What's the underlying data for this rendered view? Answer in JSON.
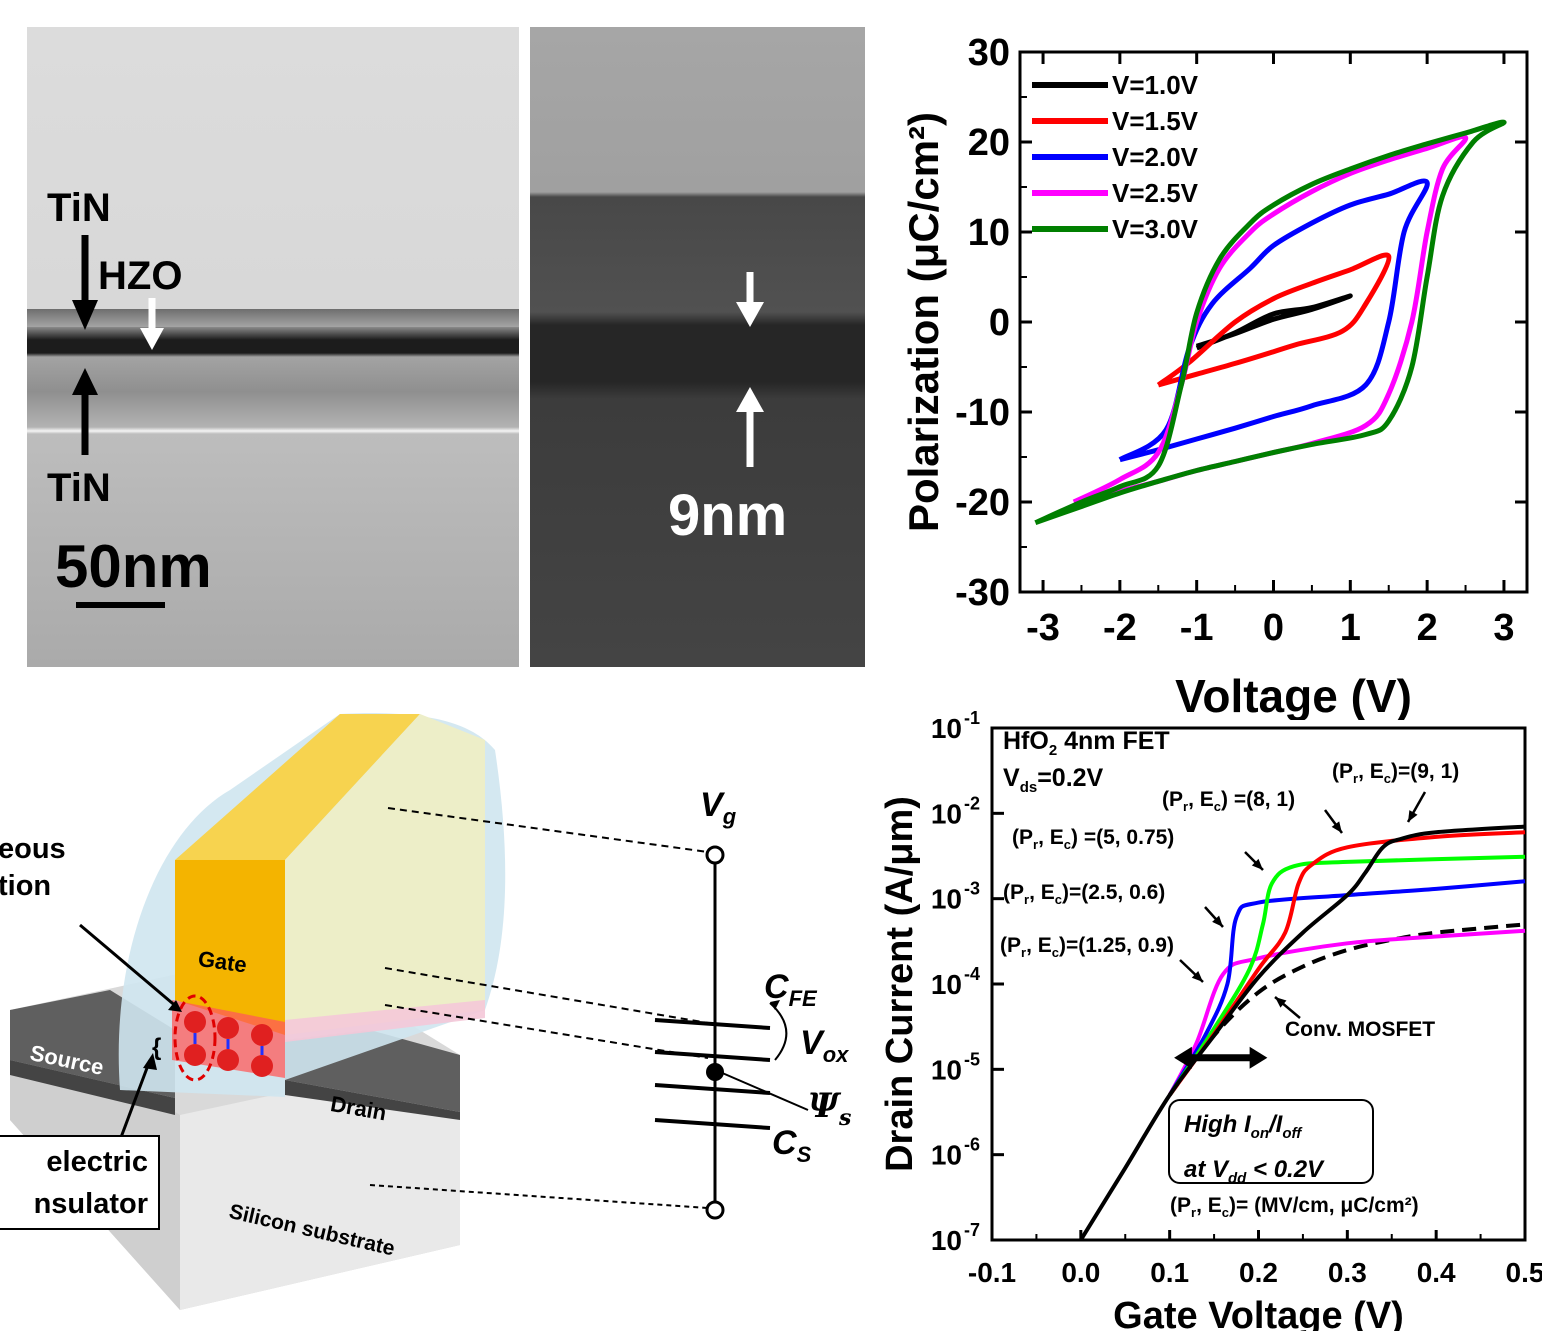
{
  "tem": {
    "left_labels": {
      "tin_top": "TiN",
      "hzo": "HZO",
      "tin_bottom": "TiN",
      "scale_bar": "50nm"
    },
    "right_labels": {
      "thickness": "9nm"
    }
  },
  "device": {
    "labels": {
      "gate": "Gate",
      "source": "Source",
      "drain": "Drain",
      "substrate": "Silicon substrate",
      "spontaneous_line1": "eous",
      "spontaneous_line2": "tion",
      "dielectric_line1": "electric",
      "dielectric_line2": "nsulator"
    },
    "circuit": {
      "vg": "V",
      "vg_sub": "g",
      "cfe": "C",
      "cfe_sub": "FE",
      "vox": "V",
      "vox_sub": "ox",
      "psi": "Ψ",
      "psi_sub": "s",
      "cs": "C",
      "cs_sub": "S"
    }
  },
  "annotations": {
    "hfo2_line1_a": "HfO",
    "hfo2_line1_sub": "2",
    "hfo2_line1_b": " 4nm FET",
    "vds_a": "V",
    "vds_sub": "ds",
    "vds_b": "=0.2V",
    "pr_ec_9_1": "=(9, 1)",
    "pr_ec_8_1": " =(8, 1)",
    "pr_ec_5_075": " =(5, 0.75)",
    "pr_ec_25_06": "=(2.5, 0.6)",
    "pr_ec_125_09": "=(1.25, 0.9)",
    "conv": "Conv. MOSFET",
    "units": "= (MV/cm, μC/cm²)",
    "box_line1_a": "High I",
    "box_line1_on": "on",
    "box_line1_b": "/I",
    "box_line1_off": "off",
    "box_line2_a": "at V",
    "box_line2_dd": "dd",
    "box_line2_b": " < 0.2V",
    "pr": "(P",
    "r_sub": "r",
    "ec": ", E",
    "c_sub": "c",
    "close": ")"
  },
  "chart_data": [
    {
      "type": "line",
      "title": "",
      "xlabel": "Voltage (V)",
      "ylabel": "Polarization (μC/cm²)",
      "xlim": [
        -3.3,
        3.3
      ],
      "ylim": [
        -30,
        30
      ],
      "xticks": [
        "-3",
        "-2",
        "-1",
        "0",
        "1",
        "2",
        "3"
      ],
      "yticks": [
        "30",
        "20",
        "10",
        "0",
        "-10",
        "-20",
        "-30"
      ],
      "legend_position": "top-left",
      "series": [
        {
          "name": "V=1.0V",
          "color": "#000000",
          "upper": [
            [
              -1,
              -2.7
            ],
            [
              -0.5,
              -1.3
            ],
            [
              0,
              0.3
            ],
            [
              0.5,
              1.4
            ],
            [
              1,
              2.9
            ]
          ],
          "lower": [
            [
              1,
              2.6
            ],
            [
              0.5,
              1.6
            ],
            [
              0,
              0.9
            ],
            [
              -0.5,
              -1.2
            ],
            [
              -1,
              -2.9
            ]
          ]
        },
        {
          "name": "V=1.5V",
          "color": "#ff0000",
          "upper": [
            [
              -1.5,
              -7
            ],
            [
              -1.1,
              -4.5
            ],
            [
              -0.5,
              0
            ],
            [
              0,
              2.6
            ],
            [
              0.5,
              4.3
            ],
            [
              1,
              5.8
            ],
            [
              1.5,
              7.3
            ]
          ],
          "lower": [
            [
              1.5,
              7.3
            ],
            [
              1.2,
              2
            ],
            [
              0.9,
              -1
            ],
            [
              0.3,
              -2.5
            ],
            [
              0,
              -3.3
            ],
            [
              -0.5,
              -4.6
            ],
            [
              -1,
              -5.8
            ],
            [
              -1.5,
              -7
            ]
          ]
        },
        {
          "name": "V=2.0V",
          "color": "#0000ff",
          "upper": [
            [
              -2,
              -15.3
            ],
            [
              -1.4,
              -12
            ],
            [
              -1.1,
              -3
            ],
            [
              -0.8,
              2
            ],
            [
              -0.3,
              6
            ],
            [
              0,
              8.5
            ],
            [
              0.5,
              11
            ],
            [
              1,
              13
            ],
            [
              1.5,
              14.2
            ],
            [
              2,
              15.5
            ]
          ],
          "lower": [
            [
              2,
              15.5
            ],
            [
              1.7,
              10
            ],
            [
              1.5,
              0
            ],
            [
              1.2,
              -7
            ],
            [
              0.5,
              -9.3
            ],
            [
              0,
              -10.5
            ],
            [
              -0.5,
              -11.8
            ],
            [
              -1,
              -13
            ],
            [
              -1.5,
              -14.2
            ],
            [
              -2,
              -15.3
            ]
          ]
        },
        {
          "name": "V=2.5V",
          "color": "#ff00ff",
          "upper": [
            [
              -2.6,
              -20
            ],
            [
              -2,
              -17.5
            ],
            [
              -1.5,
              -14.5
            ],
            [
              -1.2,
              -7
            ],
            [
              -1,
              0
            ],
            [
              -0.7,
              6
            ],
            [
              -0.3,
              10
            ],
            [
              0,
              12
            ],
            [
              0.5,
              14.5
            ],
            [
              1,
              16.5
            ],
            [
              1.5,
              18
            ],
            [
              2,
              19.3
            ],
            [
              2.5,
              20.5
            ]
          ],
          "lower": [
            [
              2.5,
              20.5
            ],
            [
              2.2,
              17
            ],
            [
              2,
              10
            ],
            [
              1.8,
              0
            ],
            [
              1.5,
              -8
            ],
            [
              1.2,
              -11.5
            ],
            [
              0.5,
              -13.5
            ],
            [
              0,
              -14.5
            ],
            [
              -0.5,
              -15.5
            ],
            [
              -1,
              -16.5
            ],
            [
              -1.5,
              -17.7
            ],
            [
              -2,
              -18.8
            ],
            [
              -2.6,
              -20
            ]
          ]
        },
        {
          "name": "V=3.0V",
          "color": "#007f00",
          "upper": [
            [
              -3.1,
              -22.3
            ],
            [
              -2.5,
              -20
            ],
            [
              -2,
              -18.3
            ],
            [
              -1.5,
              -16
            ],
            [
              -1.2,
              -7
            ],
            [
              -1,
              1
            ],
            [
              -0.7,
              7
            ],
            [
              -0.3,
              11
            ],
            [
              0,
              13
            ],
            [
              0.5,
              15.3
            ],
            [
              1,
              17
            ],
            [
              1.5,
              18.5
            ],
            [
              2,
              19.8
            ],
            [
              2.5,
              21
            ],
            [
              3,
              22.2
            ]
          ],
          "lower": [
            [
              3,
              22.2
            ],
            [
              2.6,
              20
            ],
            [
              2.2,
              14
            ],
            [
              2,
              5
            ],
            [
              1.8,
              -5
            ],
            [
              1.5,
              -11
            ],
            [
              1.2,
              -12.5
            ],
            [
              0.5,
              -13.6
            ],
            [
              0,
              -14.5
            ],
            [
              -0.5,
              -15.5
            ],
            [
              -1,
              -16.5
            ],
            [
              -1.5,
              -17.7
            ],
            [
              -2,
              -19
            ],
            [
              -2.5,
              -20.5
            ],
            [
              -3.1,
              -22.3
            ]
          ]
        }
      ]
    },
    {
      "type": "line",
      "title": "",
      "xlabel": "Gate Voltage (V)",
      "ylabel": "Drain Current (A/μm)",
      "xlim": [
        -0.1,
        0.5
      ],
      "ylim": [
        1e-07,
        0.1
      ],
      "y_scale": "log",
      "xticks": [
        "-0.1",
        "0.0",
        "0.1",
        "0.2",
        "0.3",
        "0.4",
        "0.5"
      ],
      "yticks": [
        {
          "base": "10",
          "exp": "-1"
        },
        {
          "base": "10",
          "exp": "-2"
        },
        {
          "base": "10",
          "exp": "-3"
        },
        {
          "base": "10",
          "exp": "-4"
        },
        {
          "base": "10",
          "exp": "-5"
        },
        {
          "base": "10",
          "exp": "-6"
        },
        {
          "base": "10",
          "exp": "-7"
        }
      ],
      "series": [
        {
          "label": "(9, 1)",
          "color": "#000000",
          "dash": false,
          "points": [
            [
              0,
              1e-07
            ],
            [
              0.05,
              7e-07
            ],
            [
              0.1,
              5e-06
            ],
            [
              0.15,
              2.5e-05
            ],
            [
              0.2,
              0.00012
            ],
            [
              0.25,
              0.0004
            ],
            [
              0.3,
              0.0011
            ],
            [
              0.32,
              0.002
            ],
            [
              0.34,
              0.004
            ],
            [
              0.36,
              0.005
            ],
            [
              0.4,
              0.006
            ],
            [
              0.5,
              0.007
            ]
          ]
        },
        {
          "label": "(8, 1)",
          "color": "#ff0000",
          "dash": false,
          "points": [
            [
              0.1,
              5e-06
            ],
            [
              0.15,
              2.6e-05
            ],
            [
              0.2,
              0.00015
            ],
            [
              0.23,
              0.0004
            ],
            [
              0.245,
              0.0015
            ],
            [
              0.26,
              0.0025
            ],
            [
              0.3,
              0.004
            ],
            [
              0.4,
              0.0053
            ],
            [
              0.5,
              0.006
            ]
          ]
        },
        {
          "label": "(5, 0.75)",
          "color": "#00ff00",
          "dash": false,
          "points": [
            [
              0.1,
              5e-06
            ],
            [
              0.15,
              3e-05
            ],
            [
              0.19,
              0.00015
            ],
            [
              0.205,
              0.0005
            ],
            [
              0.215,
              0.0015
            ],
            [
              0.24,
              0.0024
            ],
            [
              0.3,
              0.0027
            ],
            [
              0.5,
              0.0031
            ]
          ]
        },
        {
          "label": "(2.5, 0.6)",
          "color": "#0000ff",
          "dash": false,
          "points": [
            [
              0.1,
              5e-06
            ],
            [
              0.14,
              2.5e-05
            ],
            [
              0.165,
              0.0001
            ],
            [
              0.175,
              0.0006
            ],
            [
              0.2,
              0.0009
            ],
            [
              0.3,
              0.0011
            ],
            [
              0.4,
              0.0013
            ],
            [
              0.5,
              0.0016
            ]
          ]
        },
        {
          "label": "(1.25, 0.9)",
          "color": "#ff00ff",
          "dash": false,
          "points": [
            [
              0.1,
              5e-06
            ],
            [
              0.13,
              2e-05
            ],
            [
              0.16,
              0.00013
            ],
            [
              0.2,
              0.0002
            ],
            [
              0.3,
              0.0003
            ],
            [
              0.4,
              0.00036
            ],
            [
              0.5,
              0.00042
            ]
          ]
        },
        {
          "label": "Conv. MOSFET",
          "color": "#000000",
          "dash": true,
          "points": [
            [
              0.1,
              5e-06
            ],
            [
              0.15,
              2.5e-05
            ],
            [
              0.2,
              8e-05
            ],
            [
              0.25,
              0.00016
            ],
            [
              0.3,
              0.00025
            ],
            [
              0.35,
              0.00033
            ],
            [
              0.4,
              0.0004
            ],
            [
              0.5,
              0.0005
            ]
          ]
        }
      ]
    }
  ]
}
